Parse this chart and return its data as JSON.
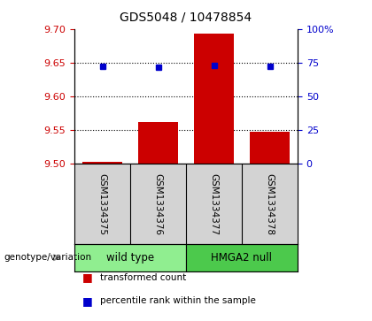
{
  "title": "GDS5048 / 10478854",
  "samples": [
    "GSM1334375",
    "GSM1334376",
    "GSM1334377",
    "GSM1334378"
  ],
  "bar_values": [
    9.503,
    9.562,
    9.693,
    9.548
  ],
  "bar_base": 9.5,
  "percentile_values": [
    9.645,
    9.643,
    9.646,
    9.644
  ],
  "bar_color": "#cc0000",
  "percentile_color": "#0000cc",
  "left_ylim": [
    9.5,
    9.7
  ],
  "right_ylim": [
    0,
    100
  ],
  "left_yticks": [
    9.5,
    9.55,
    9.6,
    9.65,
    9.7
  ],
  "right_yticks": [
    0,
    25,
    50,
    75,
    100
  ],
  "right_yticklabels": [
    "0",
    "25",
    "50",
    "75",
    "100%"
  ],
  "hline_values": [
    9.55,
    9.6,
    9.65
  ],
  "groups": [
    {
      "label": "wild type",
      "indices": [
        0,
        1
      ],
      "color": "#90ee90"
    },
    {
      "label": "HMGA2 null",
      "indices": [
        2,
        3
      ],
      "color": "#4cc94c"
    }
  ],
  "group_row_label": "genotype/variation",
  "legend_items": [
    {
      "color": "#cc0000",
      "label": "transformed count"
    },
    {
      "color": "#0000cc",
      "label": "percentile rank within the sample"
    }
  ],
  "left_tick_color": "#cc0000",
  "right_tick_color": "#0000cc",
  "bar_width": 0.7,
  "sample_area_color": "#d3d3d3",
  "sample_area_linecolor": "#000000",
  "fig_width": 4.2,
  "fig_height": 3.63,
  "dpi": 100
}
